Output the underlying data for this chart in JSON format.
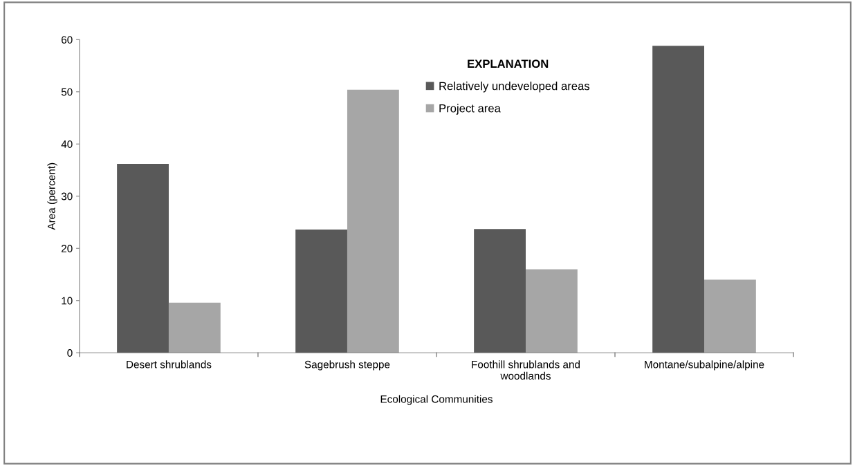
{
  "chart_data": {
    "type": "bar",
    "xlabel": "Ecological Communities",
    "ylabel": "Area (percent)",
    "categories": [
      "Desert shrublands",
      "Sagebrush steppe",
      "Foothill shrublands and\nwoodlands",
      "Montane/subalpine/alpine"
    ],
    "series": [
      {
        "name": "Relatively undeveloped areas",
        "color": "#595959",
        "values": [
          36.2,
          23.6,
          23.7,
          58.8
        ]
      },
      {
        "name": "Project area",
        "color": "#a6a6a6",
        "values": [
          9.6,
          50.4,
          16.0,
          14.0
        ]
      }
    ],
    "legend_title": "EXPLANATION",
    "legend": "top",
    "ylim": [
      0,
      60
    ],
    "yticks": [
      0,
      10,
      20,
      30,
      40,
      50,
      60
    ],
    "grid": false
  }
}
